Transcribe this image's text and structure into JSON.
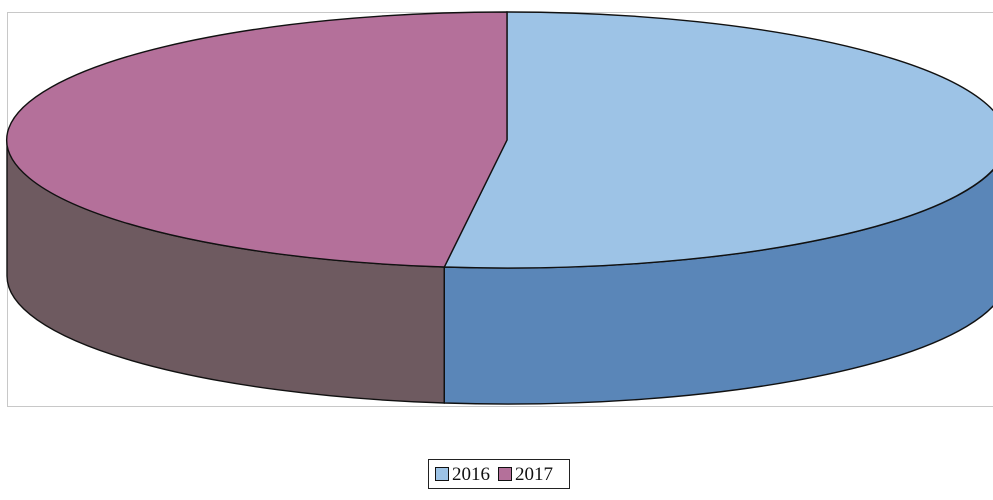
{
  "chart_data": {
    "type": "pie",
    "style": "3d",
    "legend_position": "bottom",
    "series": [
      {
        "name": "2016",
        "value": 52.0,
        "color": "#9dc3e6",
        "side_color": "#5a86b8"
      },
      {
        "name": "2017",
        "value": 48.0,
        "color": "#b4709a",
        "side_color": "#6e5a60"
      }
    ]
  }
}
